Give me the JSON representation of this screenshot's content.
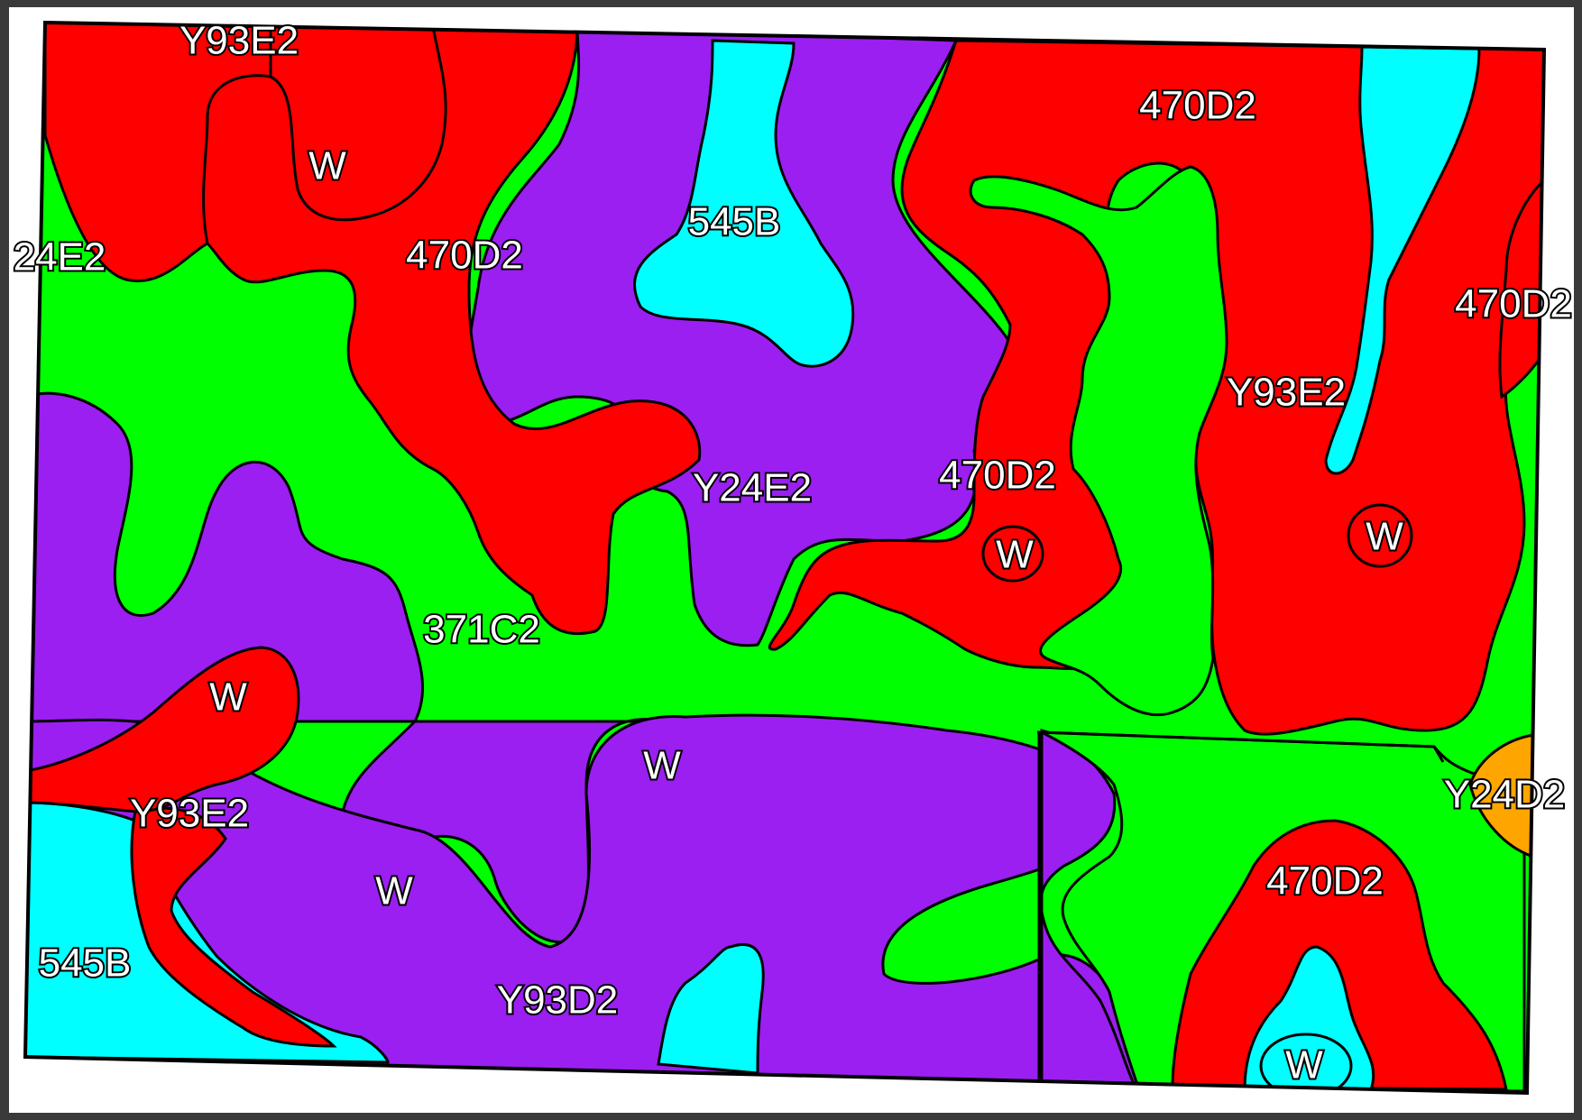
{
  "colors": {
    "red": "#ff0000",
    "purple": "#9b1ff0",
    "green": "#00ff00",
    "cyan": "#00ffff",
    "orange": "#ffa500",
    "boundary": "#000000",
    "paper": "#ffffff",
    "backdrop": "#3a3a3a"
  },
  "labels": {
    "y93e2_top": "Y93E2",
    "w_top": "W",
    "e2_left": "24E2",
    "d2_upper_left": "470D2",
    "b545_top": "545B",
    "d2_top_right": "470D2",
    "d2_right_edge": "470D2",
    "y93e2_right": "Y93E2",
    "y24e2_center": "Y24E2",
    "d2_center": "470D2",
    "w_center": "W",
    "w_right": "W",
    "c2_371": "371C2",
    "w_left": "W",
    "w_lower_center": "W",
    "y24d2_right": "Y24D2",
    "y93e2_lower_left": "Y93E2",
    "w_lower_left": "W",
    "d2_lower_right": "470D2",
    "b545_lower_left": "545B",
    "y93d2_bottom": "Y93D2",
    "w_bottom_right": "W"
  }
}
